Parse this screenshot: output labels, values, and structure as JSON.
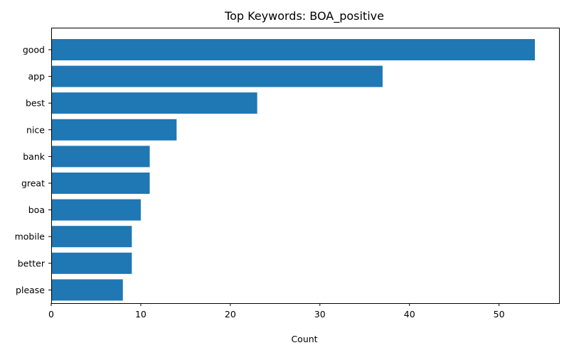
{
  "chart_data": {
    "type": "bar",
    "orientation": "horizontal",
    "title": "Top Keywords: BOA_positive",
    "xlabel": "Count",
    "ylabel": "",
    "categories": [
      "good",
      "app",
      "best",
      "nice",
      "bank",
      "great",
      "boa",
      "mobile",
      "better",
      "please"
    ],
    "values": [
      54,
      37,
      23,
      14,
      11,
      11,
      10,
      9,
      9,
      8
    ],
    "xlim": [
      0,
      56.7
    ],
    "xticks": [
      0,
      10,
      20,
      30,
      40,
      50
    ],
    "bar_color": "#1f77b4",
    "grid": false,
    "legend": "none"
  }
}
